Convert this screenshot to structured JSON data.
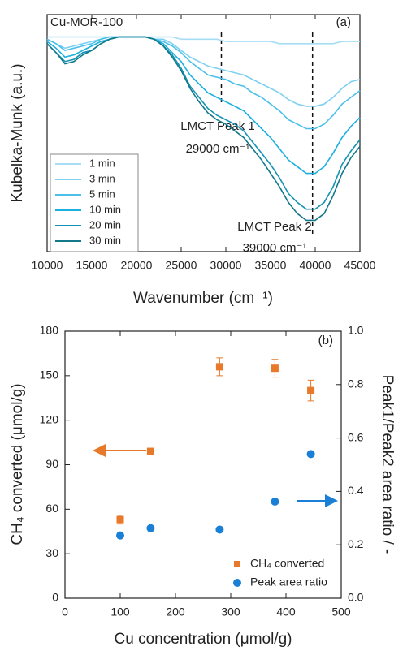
{
  "chart_data": [
    {
      "type": "line",
      "annotations": [
        "Cu-MOR-100",
        "(a)",
        "LMCT Peak 1",
        "29000 cm⁻¹",
        "LMCT Peak 2",
        "39000 cm⁻¹"
      ],
      "x_label": "Wavenumber (cm⁻¹)",
      "y_label": "Kubelka-Munk (a.u.)",
      "x": [
        10000,
        11000,
        12000,
        13000,
        14000,
        15000,
        16000,
        17000,
        18000,
        19000,
        20000,
        21000,
        22000,
        23000,
        24000,
        25000,
        26000,
        27000,
        28000,
        29000,
        30000,
        31000,
        32000,
        33000,
        34000,
        35000,
        36000,
        37000,
        38000,
        39000,
        40000,
        41000,
        42000,
        43000,
        44000,
        45000
      ],
      "series": [
        {
          "name": "1 min",
          "color": "#a6ddf4",
          "values": [
            0.96,
            0.96,
            0.96,
            0.96,
            0.96,
            0.96,
            0.96,
            0.96,
            0.96,
            0.96,
            0.96,
            0.96,
            0.96,
            0.96,
            0.96,
            0.95,
            0.95,
            0.95,
            0.95,
            0.95,
            0.94,
            0.94,
            0.94,
            0.94,
            0.94,
            0.94,
            0.93,
            0.93,
            0.93,
            0.93,
            0.93,
            0.93,
            0.93,
            0.94,
            0.94,
            0.94
          ]
        },
        {
          "name": "3 min",
          "color": "#7fd0f0",
          "values": [
            0.95,
            0.93,
            0.91,
            0.92,
            0.93,
            0.94,
            0.95,
            0.96,
            0.96,
            0.96,
            0.96,
            0.96,
            0.95,
            0.95,
            0.93,
            0.9,
            0.87,
            0.85,
            0.83,
            0.82,
            0.81,
            0.8,
            0.79,
            0.77,
            0.75,
            0.73,
            0.71,
            0.68,
            0.66,
            0.65,
            0.65,
            0.66,
            0.69,
            0.73,
            0.76,
            0.77
          ]
        },
        {
          "name": "5 min",
          "color": "#4cc0ea",
          "values": [
            0.95,
            0.93,
            0.9,
            0.91,
            0.92,
            0.93,
            0.95,
            0.96,
            0.96,
            0.96,
            0.96,
            0.96,
            0.95,
            0.94,
            0.92,
            0.89,
            0.85,
            0.82,
            0.79,
            0.78,
            0.77,
            0.75,
            0.74,
            0.71,
            0.69,
            0.66,
            0.63,
            0.59,
            0.57,
            0.55,
            0.55,
            0.57,
            0.61,
            0.66,
            0.69,
            0.72
          ]
        },
        {
          "name": "10 min",
          "color": "#1cb0e0",
          "values": [
            0.94,
            0.91,
            0.87,
            0.88,
            0.9,
            0.92,
            0.94,
            0.95,
            0.96,
            0.96,
            0.96,
            0.96,
            0.95,
            0.93,
            0.89,
            0.85,
            0.79,
            0.75,
            0.71,
            0.69,
            0.67,
            0.65,
            0.63,
            0.59,
            0.55,
            0.51,
            0.46,
            0.41,
            0.38,
            0.35,
            0.35,
            0.38,
            0.44,
            0.51,
            0.56,
            0.6
          ]
        },
        {
          "name": "20 min",
          "color": "#1592b4",
          "values": [
            0.93,
            0.89,
            0.85,
            0.86,
            0.89,
            0.9,
            0.93,
            0.95,
            0.96,
            0.96,
            0.96,
            0.96,
            0.95,
            0.92,
            0.88,
            0.82,
            0.74,
            0.69,
            0.64,
            0.61,
            0.59,
            0.57,
            0.54,
            0.49,
            0.44,
            0.39,
            0.33,
            0.26,
            0.22,
            0.19,
            0.19,
            0.22,
            0.29,
            0.39,
            0.45,
            0.5
          ]
        },
        {
          "name": "30 min",
          "color": "#13798a",
          "values": [
            0.93,
            0.89,
            0.84,
            0.85,
            0.88,
            0.9,
            0.93,
            0.95,
            0.96,
            0.96,
            0.96,
            0.96,
            0.95,
            0.92,
            0.87,
            0.81,
            0.73,
            0.67,
            0.62,
            0.59,
            0.57,
            0.54,
            0.51,
            0.46,
            0.41,
            0.35,
            0.29,
            0.22,
            0.17,
            0.14,
            0.14,
            0.17,
            0.25,
            0.35,
            0.42,
            0.47
          ]
        }
      ],
      "reference_lines": [
        29500,
        39700
      ],
      "xlim": [
        10000,
        45000
      ],
      "xticks": [
        10000,
        15000,
        20000,
        25000,
        30000,
        35000,
        40000,
        45000
      ],
      "ylim": [
        0,
        1.06
      ],
      "legend": "lower left"
    },
    {
      "type": "scatter",
      "annotations": [
        "(b)"
      ],
      "x_label": "Cu concentration (μmol/g)",
      "y_label": "CH₄ converted (μmol/g)",
      "y2_label": "Peak1/Peak2 area ratio / -",
      "x": [
        100,
        155,
        280,
        380,
        445
      ],
      "series": [
        {
          "name": "CH₄ converted",
          "color": "#e8782a",
          "marker": "square",
          "values": [
            53,
            99,
            156,
            155,
            140
          ],
          "errors": [
            3,
            1,
            6,
            6,
            7
          ]
        },
        {
          "name": "Peak area ratio",
          "color": "#1a80d6",
          "marker": "circle",
          "axis": "y2",
          "values": [
            0.235,
            0.262,
            0.257,
            0.362,
            0.54
          ]
        }
      ],
      "xlim": [
        0,
        500
      ],
      "xticks": [
        0,
        100,
        200,
        300,
        400,
        500
      ],
      "ylim": [
        0,
        180
      ],
      "yticks": [
        0,
        30,
        60,
        90,
        120,
        150,
        180
      ],
      "y2lim": [
        0,
        1
      ],
      "y2ticks": [
        {
          "value": 0,
          "label": "0.0"
        },
        0.2,
        0.4,
        0.6,
        0.8,
        {
          "value": 1,
          "label": "1.0"
        }
      ],
      "legend": "lower right"
    }
  ]
}
